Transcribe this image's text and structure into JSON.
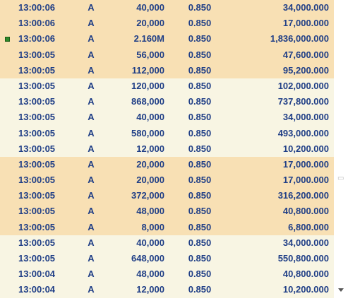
{
  "trades": [
    {
      "time": "13:00:06",
      "flag": "A",
      "volume": "40,000",
      "price": "0.850",
      "value": "34,000.000",
      "band": "orange",
      "marker": false
    },
    {
      "time": "13:00:06",
      "flag": "A",
      "volume": "20,000",
      "price": "0.850",
      "value": "17,000.000",
      "band": "orange",
      "marker": false
    },
    {
      "time": "13:00:06",
      "flag": "A",
      "volume": "2.160M",
      "price": "0.850",
      "value": "1,836,000.000",
      "band": "orange",
      "marker": true
    },
    {
      "time": "13:00:05",
      "flag": "A",
      "volume": "56,000",
      "price": "0.850",
      "value": "47,600.000",
      "band": "orange",
      "marker": false
    },
    {
      "time": "13:00:05",
      "flag": "A",
      "volume": "112,000",
      "price": "0.850",
      "value": "95,200.000",
      "band": "orange",
      "marker": false
    },
    {
      "time": "13:00:05",
      "flag": "A",
      "volume": "120,000",
      "price": "0.850",
      "value": "102,000.000",
      "band": "cream",
      "marker": false
    },
    {
      "time": "13:00:05",
      "flag": "A",
      "volume": "868,000",
      "price": "0.850",
      "value": "737,800.000",
      "band": "cream",
      "marker": false
    },
    {
      "time": "13:00:05",
      "flag": "A",
      "volume": "40,000",
      "price": "0.850",
      "value": "34,000.000",
      "band": "cream",
      "marker": false
    },
    {
      "time": "13:00:05",
      "flag": "A",
      "volume": "580,000",
      "price": "0.850",
      "value": "493,000.000",
      "band": "cream",
      "marker": false
    },
    {
      "time": "13:00:05",
      "flag": "A",
      "volume": "12,000",
      "price": "0.850",
      "value": "10,200.000",
      "band": "cream",
      "marker": false
    },
    {
      "time": "13:00:05",
      "flag": "A",
      "volume": "20,000",
      "price": "0.850",
      "value": "17,000.000",
      "band": "orange",
      "marker": false
    },
    {
      "time": "13:00:05",
      "flag": "A",
      "volume": "20,000",
      "price": "0.850",
      "value": "17,000.000",
      "band": "orange",
      "marker": false
    },
    {
      "time": "13:00:05",
      "flag": "A",
      "volume": "372,000",
      "price": "0.850",
      "value": "316,200.000",
      "band": "orange",
      "marker": false
    },
    {
      "time": "13:00:05",
      "flag": "A",
      "volume": "48,000",
      "price": "0.850",
      "value": "40,800.000",
      "band": "orange",
      "marker": false
    },
    {
      "time": "13:00:05",
      "flag": "A",
      "volume": "8,000",
      "price": "0.850",
      "value": "6,800.000",
      "band": "orange",
      "marker": false
    },
    {
      "time": "13:00:05",
      "flag": "A",
      "volume": "40,000",
      "price": "0.850",
      "value": "34,000.000",
      "band": "cream",
      "marker": false
    },
    {
      "time": "13:00:05",
      "flag": "A",
      "volume": "648,000",
      "price": "0.850",
      "value": "550,800.000",
      "band": "cream",
      "marker": false
    },
    {
      "time": "13:00:04",
      "flag": "A",
      "volume": "48,000",
      "price": "0.850",
      "value": "40,800.000",
      "band": "cream",
      "marker": false
    },
    {
      "time": "13:00:04",
      "flag": "A",
      "volume": "12,000",
      "price": "0.850",
      "value": "10,200.000",
      "band": "cream",
      "marker": false
    }
  ],
  "colors": {
    "text": "#1f3e86",
    "band_orange": "#f8e0b4",
    "band_cream": "#f8f5e3",
    "marker": "#2f8a2a"
  },
  "icons": {
    "scroll_handle": "scroll-grip-icon",
    "scroll_down": "scroll-down-arrow-icon"
  }
}
